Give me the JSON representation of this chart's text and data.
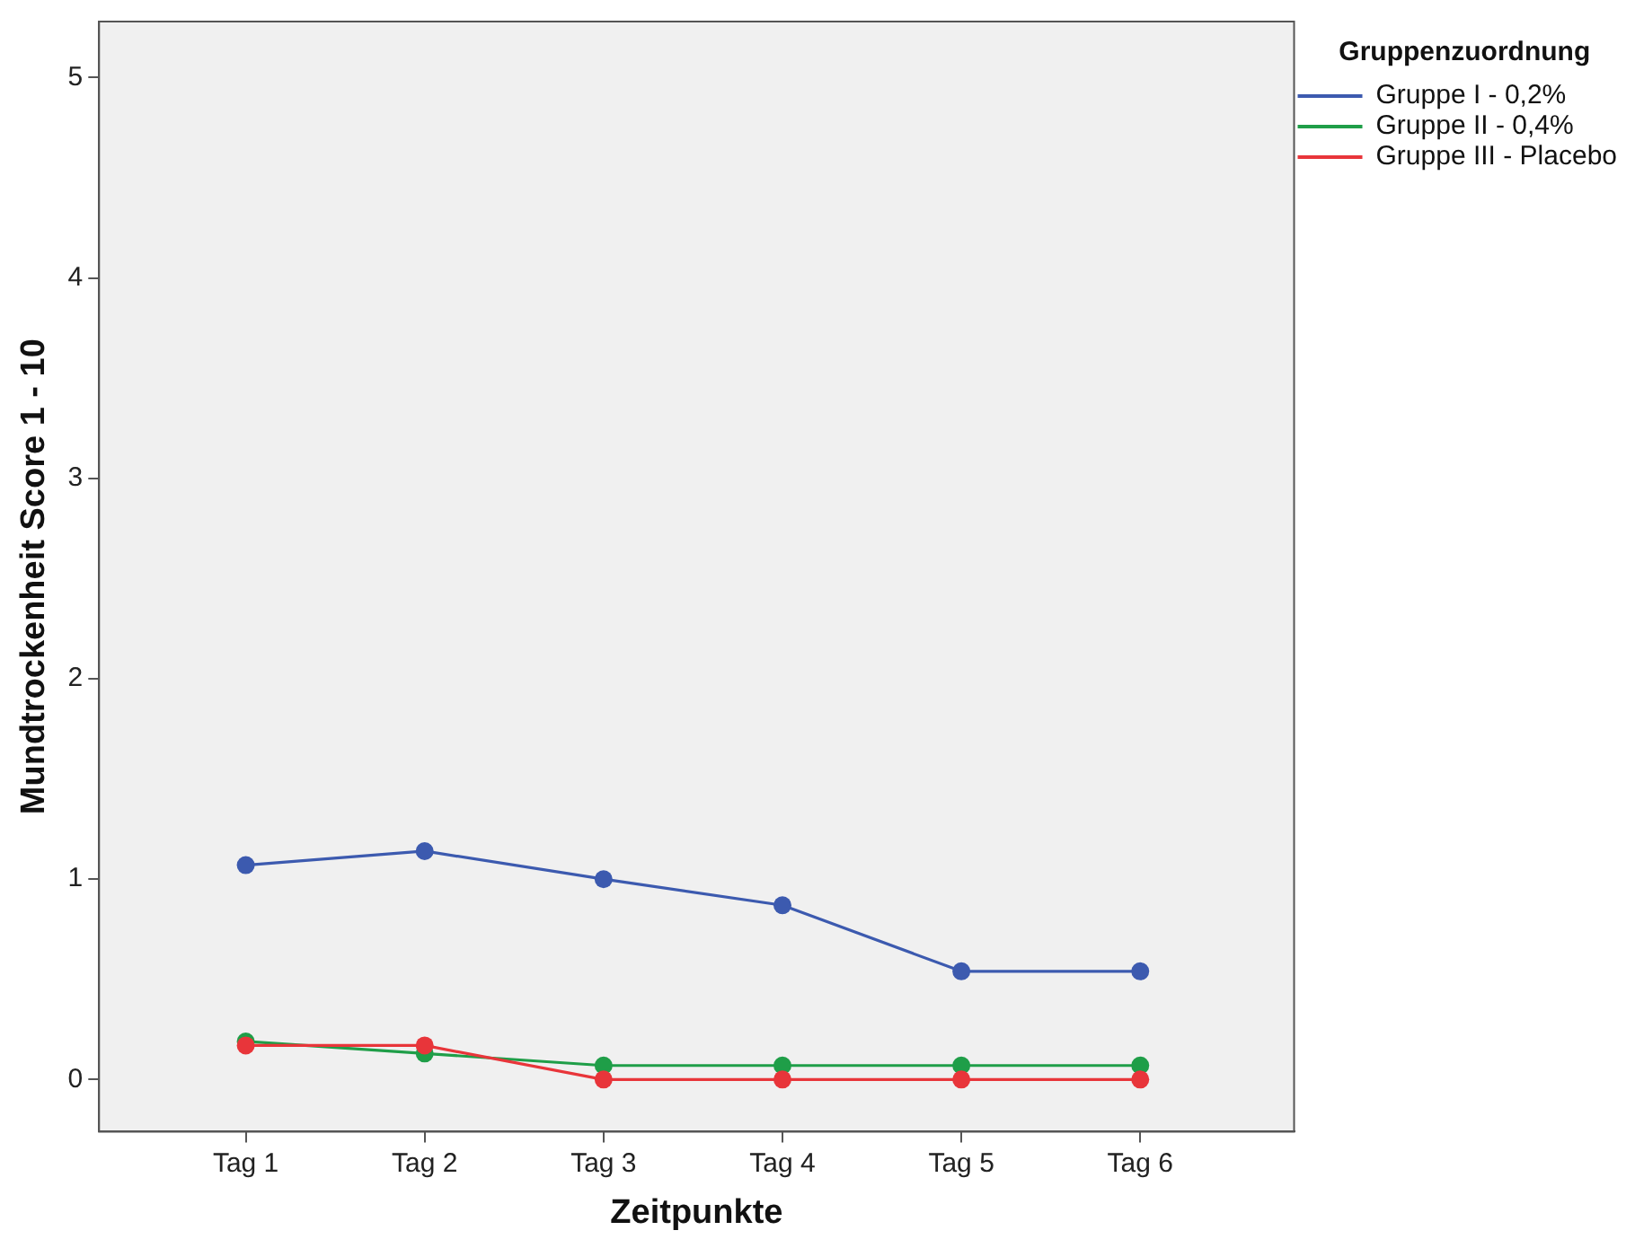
{
  "chart_data": {
    "type": "line",
    "xlabel": "Zeitpunkte",
    "ylabel": "Mundtrockenheit Score 1 - 10",
    "legend_title": "Gruppenzuordnung",
    "categories": [
      "Tag 1",
      "Tag 2",
      "Tag 3",
      "Tag 4",
      "Tag 5",
      "Tag 6"
    ],
    "series": [
      {
        "name": "Gruppe I - 0,2%",
        "color": "#3c5aaf",
        "values": [
          1.07,
          1.14,
          1.0,
          0.87,
          0.54,
          0.54
        ]
      },
      {
        "name": "Gruppe II - 0,4%",
        "color": "#1f9e48",
        "values": [
          0.19,
          0.13,
          0.07,
          0.07,
          0.07,
          0.07
        ]
      },
      {
        "name": "Gruppe III - Placebo",
        "color": "#e8353a",
        "values": [
          0.17,
          0.17,
          0,
          0,
          0,
          0
        ]
      }
    ],
    "ylim": [
      -0.26,
      5.28
    ],
    "yticks": [
      0,
      1,
      2,
      3,
      4,
      5
    ],
    "grid": false,
    "legend": "top right",
    "marker": "circle",
    "line_style": "solid"
  }
}
